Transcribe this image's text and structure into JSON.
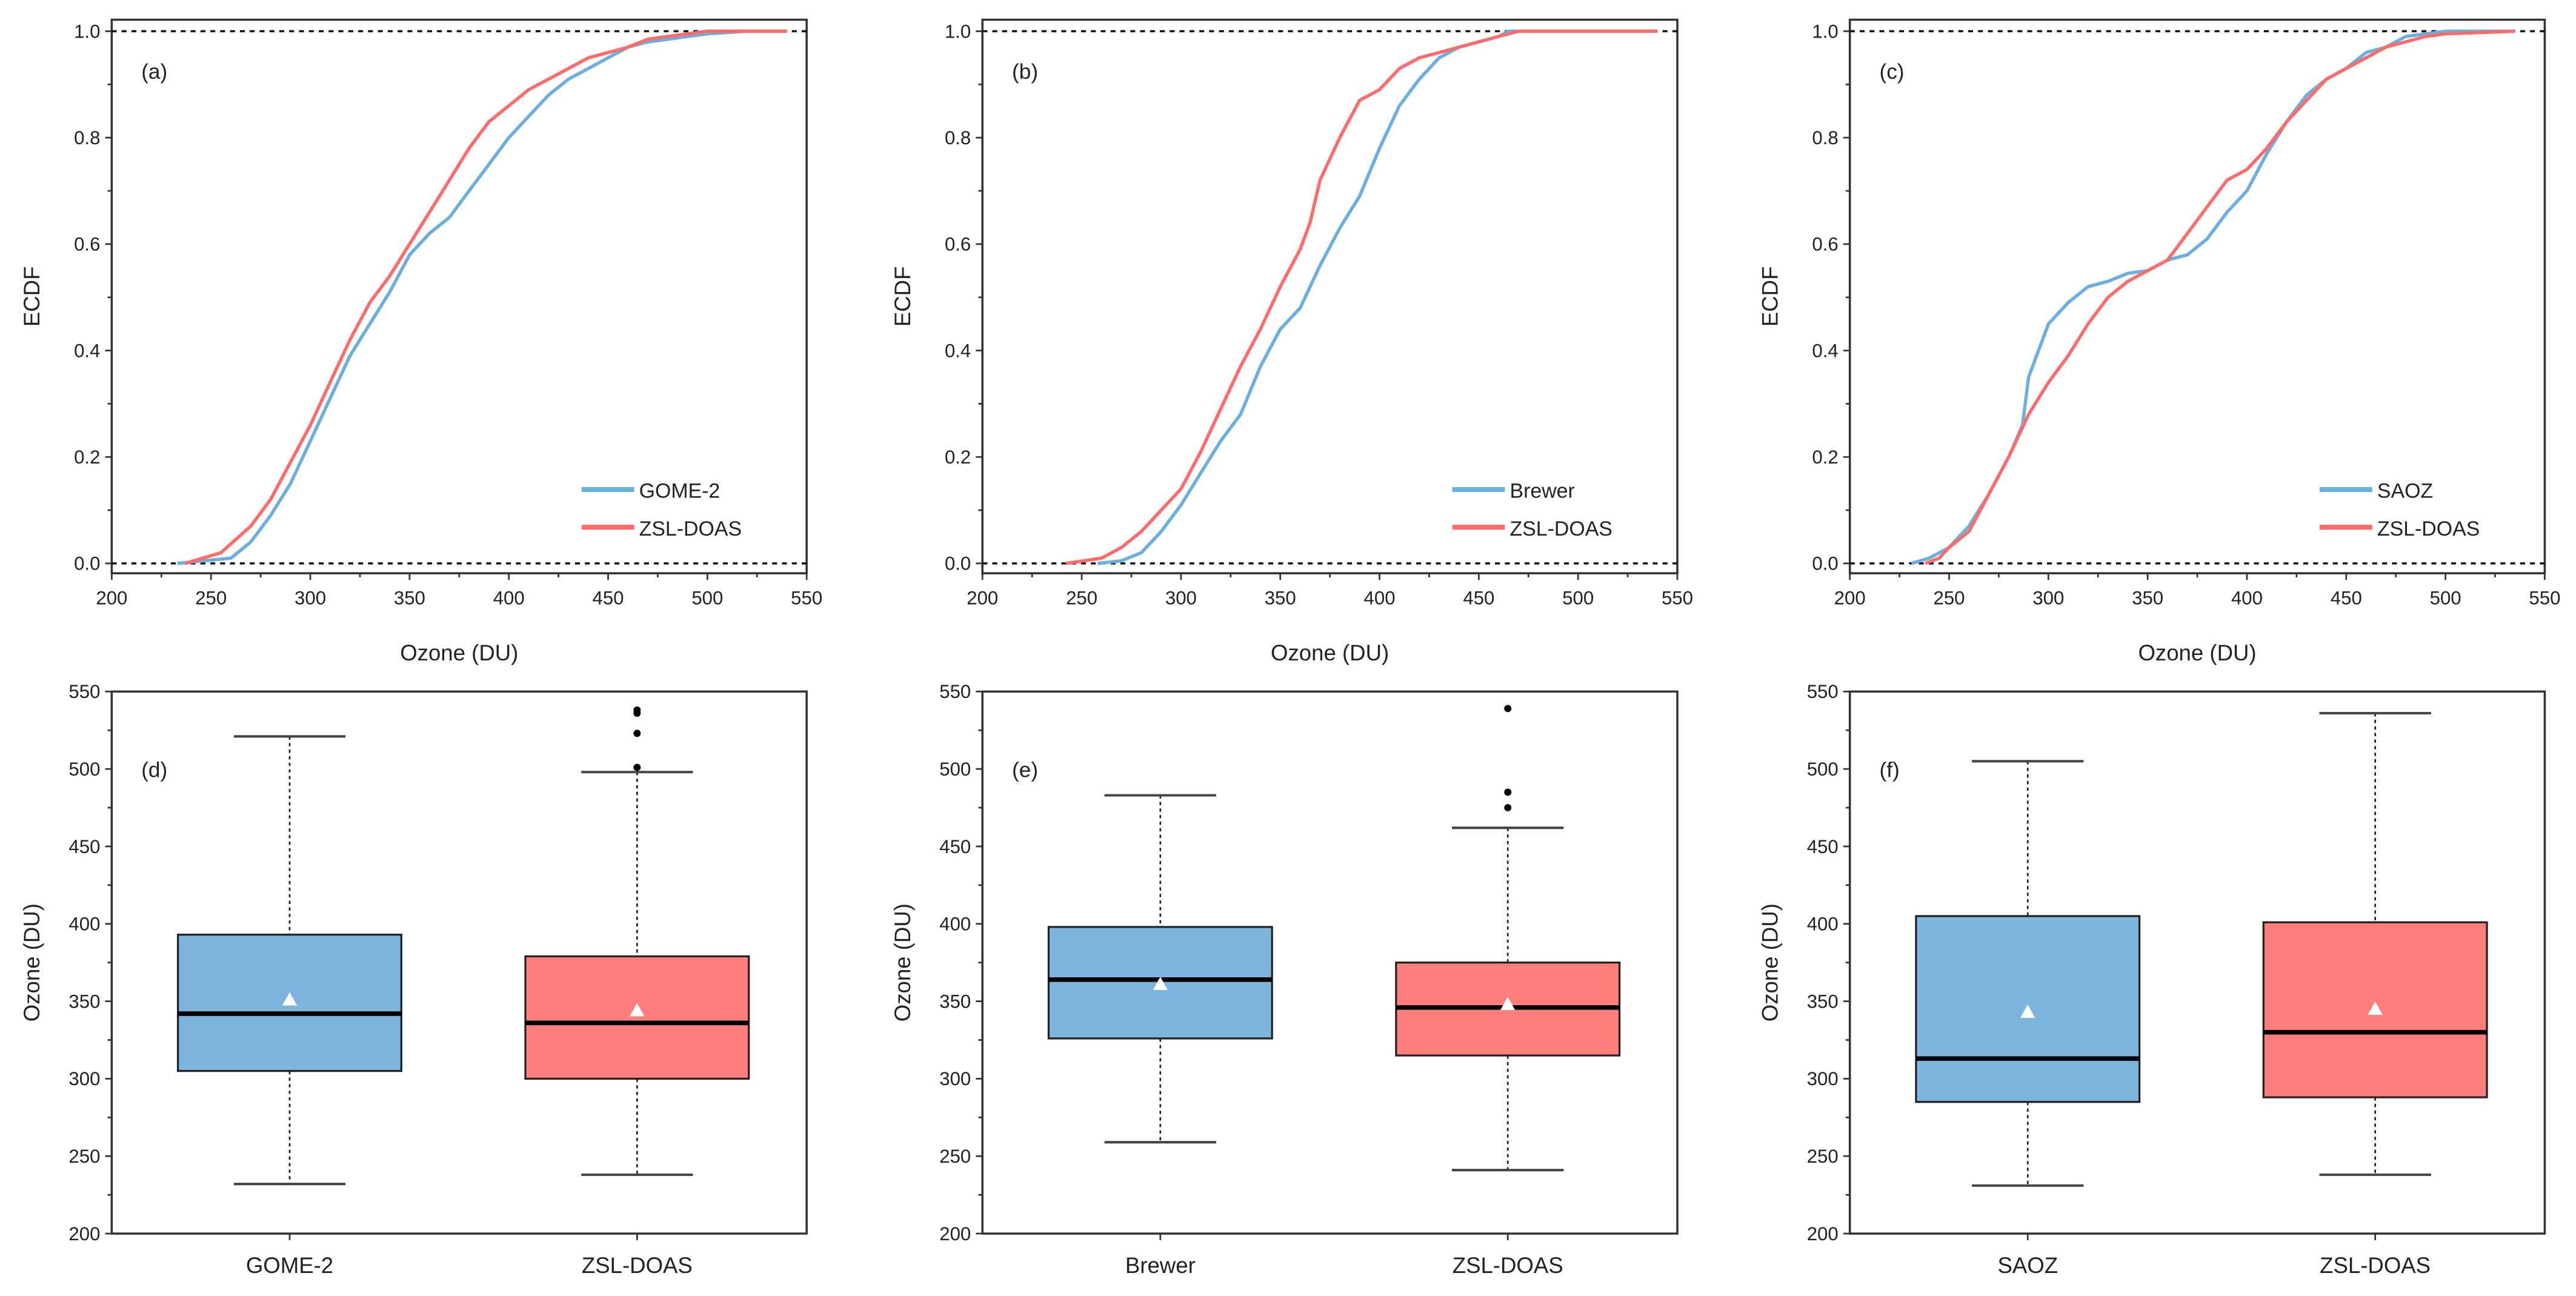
{
  "chart_data": [
    {
      "type": "line",
      "panel_label": "(a)",
      "xlabel": "Ozone (DU)",
      "ylabel": "ECDF",
      "xlim": [
        200,
        550
      ],
      "ylim": [
        0,
        1.0
      ],
      "xticks": [
        "200",
        "250",
        "300",
        "350",
        "400",
        "450",
        "500",
        "550"
      ],
      "yticks": [
        "0.0",
        "0.2",
        "0.4",
        "0.6",
        "0.8",
        "1.0"
      ],
      "reference_lines": [
        0,
        1
      ],
      "legend_position": "bottom-right",
      "series": [
        {
          "name": "GOME-2",
          "color": "#6BAEE0",
          "points": [
            [
              233,
              0
            ],
            [
              260,
              0.01
            ],
            [
              270,
              0.04
            ],
            [
              280,
              0.09
            ],
            [
              290,
              0.15
            ],
            [
              300,
              0.23
            ],
            [
              310,
              0.31
            ],
            [
              320,
              0.39
            ],
            [
              330,
              0.45
            ],
            [
              340,
              0.51
            ],
            [
              350,
              0.58
            ],
            [
              360,
              0.62
            ],
            [
              370,
              0.65
            ],
            [
              380,
              0.7
            ],
            [
              390,
              0.75
            ],
            [
              400,
              0.8
            ],
            [
              410,
              0.84
            ],
            [
              420,
              0.88
            ],
            [
              430,
              0.91
            ],
            [
              440,
              0.93
            ],
            [
              450,
              0.95
            ],
            [
              460,
              0.97
            ],
            [
              470,
              0.98
            ],
            [
              480,
              0.985
            ],
            [
              490,
              0.99
            ],
            [
              500,
              0.995
            ],
            [
              520,
              1
            ],
            [
              540,
              1
            ]
          ]
        },
        {
          "name": "ZSL-DOAS",
          "color": "#FF6B6B",
          "points": [
            [
              237,
              0
            ],
            [
              255,
              0.02
            ],
            [
              270,
              0.07
            ],
            [
              280,
              0.12
            ],
            [
              290,
              0.19
            ],
            [
              300,
              0.26
            ],
            [
              310,
              0.34
            ],
            [
              320,
              0.42
            ],
            [
              330,
              0.49
            ],
            [
              340,
              0.54
            ],
            [
              350,
              0.6
            ],
            [
              360,
              0.66
            ],
            [
              370,
              0.72
            ],
            [
              380,
              0.78
            ],
            [
              390,
              0.83
            ],
            [
              400,
              0.86
            ],
            [
              410,
              0.89
            ],
            [
              420,
              0.91
            ],
            [
              430,
              0.93
            ],
            [
              440,
              0.95
            ],
            [
              450,
              0.96
            ],
            [
              460,
              0.97
            ],
            [
              470,
              0.985
            ],
            [
              480,
              0.99
            ],
            [
              500,
              1
            ],
            [
              540,
              1
            ]
          ]
        }
      ]
    },
    {
      "type": "line",
      "panel_label": "(b)",
      "xlabel": "Ozone (DU)",
      "ylabel": "ECDF",
      "xlim": [
        200,
        550
      ],
      "ylim": [
        0,
        1.0
      ],
      "xticks": [
        "200",
        "250",
        "300",
        "350",
        "400",
        "450",
        "500",
        "550"
      ],
      "yticks": [
        "0.0",
        "0.2",
        "0.4",
        "0.6",
        "0.8",
        "1.0"
      ],
      "reference_lines": [
        0,
        1
      ],
      "legend_position": "bottom-right",
      "series": [
        {
          "name": "Brewer",
          "color": "#6BAEE0",
          "points": [
            [
              258,
              0
            ],
            [
              270,
              0.005
            ],
            [
              280,
              0.02
            ],
            [
              290,
              0.06
            ],
            [
              300,
              0.11
            ],
            [
              310,
              0.17
            ],
            [
              320,
              0.23
            ],
            [
              330,
              0.28
            ],
            [
              340,
              0.37
            ],
            [
              350,
              0.44
            ],
            [
              360,
              0.48
            ],
            [
              370,
              0.56
            ],
            [
              380,
              0.63
            ],
            [
              390,
              0.69
            ],
            [
              400,
              0.78
            ],
            [
              410,
              0.86
            ],
            [
              420,
              0.91
            ],
            [
              430,
              0.95
            ],
            [
              440,
              0.97
            ],
            [
              450,
              0.98
            ],
            [
              460,
              0.99
            ],
            [
              465,
              1
            ],
            [
              540,
              1
            ]
          ]
        },
        {
          "name": "ZSL-DOAS",
          "color": "#FF6B6B",
          "points": [
            [
              242,
              0
            ],
            [
              260,
              0.01
            ],
            [
              270,
              0.03
            ],
            [
              280,
              0.06
            ],
            [
              290,
              0.1
            ],
            [
              300,
              0.14
            ],
            [
              310,
              0.21
            ],
            [
              320,
              0.29
            ],
            [
              330,
              0.37
            ],
            [
              340,
              0.44
            ],
            [
              350,
              0.52
            ],
            [
              360,
              0.59
            ],
            [
              365,
              0.64
            ],
            [
              370,
              0.72
            ],
            [
              380,
              0.8
            ],
            [
              390,
              0.87
            ],
            [
              400,
              0.89
            ],
            [
              410,
              0.93
            ],
            [
              420,
              0.95
            ],
            [
              430,
              0.96
            ],
            [
              440,
              0.97
            ],
            [
              450,
              0.98
            ],
            [
              460,
              0.99
            ],
            [
              470,
              1
            ],
            [
              540,
              1
            ]
          ]
        }
      ]
    },
    {
      "type": "line",
      "panel_label": "(c)",
      "xlabel": "Ozone (DU)",
      "ylabel": "ECDF",
      "xlim": [
        200,
        550
      ],
      "ylim": [
        0,
        1.0
      ],
      "xticks": [
        "200",
        "250",
        "300",
        "350",
        "400",
        "450",
        "500",
        "550"
      ],
      "yticks": [
        "0.0",
        "0.2",
        "0.4",
        "0.6",
        "0.8",
        "1.0"
      ],
      "reference_lines": [
        0,
        1
      ],
      "legend_position": "bottom-right",
      "series": [
        {
          "name": "SAOZ",
          "color": "#6BAEE0",
          "points": [
            [
              231,
              0
            ],
            [
              240,
              0.01
            ],
            [
              250,
              0.03
            ],
            [
              260,
              0.07
            ],
            [
              270,
              0.13
            ],
            [
              280,
              0.2
            ],
            [
              287,
              0.26
            ],
            [
              290,
              0.35
            ],
            [
              300,
              0.45
            ],
            [
              310,
              0.49
            ],
            [
              320,
              0.52
            ],
            [
              330,
              0.53
            ],
            [
              340,
              0.545
            ],
            [
              350,
              0.55
            ],
            [
              360,
              0.57
            ],
            [
              370,
              0.58
            ],
            [
              380,
              0.61
            ],
            [
              390,
              0.66
            ],
            [
              400,
              0.7
            ],
            [
              410,
              0.77
            ],
            [
              420,
              0.83
            ],
            [
              430,
              0.88
            ],
            [
              440,
              0.91
            ],
            [
              450,
              0.93
            ],
            [
              460,
              0.96
            ],
            [
              470,
              0.97
            ],
            [
              480,
              0.99
            ],
            [
              500,
              1
            ],
            [
              535,
              1
            ]
          ]
        },
        {
          "name": "ZSL-DOAS",
          "color": "#FF6B6B",
          "points": [
            [
              238,
              0
            ],
            [
              245,
              0.01
            ],
            [
              250,
              0.03
            ],
            [
              260,
              0.06
            ],
            [
              270,
              0.13
            ],
            [
              280,
              0.2
            ],
            [
              290,
              0.28
            ],
            [
              300,
              0.34
            ],
            [
              310,
              0.39
            ],
            [
              320,
              0.45
            ],
            [
              330,
              0.5
            ],
            [
              340,
              0.53
            ],
            [
              350,
              0.55
            ],
            [
              360,
              0.57
            ],
            [
              370,
              0.62
            ],
            [
              380,
              0.67
            ],
            [
              390,
              0.72
            ],
            [
              400,
              0.74
            ],
            [
              410,
              0.78
            ],
            [
              420,
              0.83
            ],
            [
              430,
              0.87
            ],
            [
              440,
              0.91
            ],
            [
              450,
              0.93
            ],
            [
              460,
              0.95
            ],
            [
              470,
              0.97
            ],
            [
              490,
              0.99
            ],
            [
              500,
              0.995
            ],
            [
              535,
              1
            ]
          ]
        }
      ]
    },
    {
      "type": "box",
      "panel_label": "(d)",
      "ylabel": "Ozone (DU)",
      "ylim": [
        200,
        550
      ],
      "yticks": [
        "200",
        "250",
        "300",
        "350",
        "400",
        "450",
        "500",
        "550"
      ],
      "categories": [
        "GOME-2",
        "ZSL-DOAS"
      ],
      "boxes": [
        {
          "name": "GOME-2",
          "color": "#7EB5DE",
          "whisker_low": 232,
          "q1": 305,
          "median": 342,
          "q3": 393,
          "whisker_high": 521,
          "mean": 351,
          "outliers": []
        },
        {
          "name": "ZSL-DOAS",
          "color": "#FF7F7C",
          "whisker_low": 238,
          "q1": 300,
          "median": 336,
          "q3": 379,
          "whisker_high": 498,
          "mean": 344,
          "outliers": [
            501,
            523,
            536,
            538
          ]
        }
      ]
    },
    {
      "type": "box",
      "panel_label": "(e)",
      "ylabel": "Ozone (DU)",
      "ylim": [
        200,
        550
      ],
      "yticks": [
        "200",
        "250",
        "300",
        "350",
        "400",
        "450",
        "500",
        "550"
      ],
      "categories": [
        "Brewer",
        "ZSL-DOAS"
      ],
      "boxes": [
        {
          "name": "Brewer",
          "color": "#7EB5DE",
          "whisker_low": 259,
          "q1": 326,
          "median": 364,
          "q3": 398,
          "whisker_high": 483,
          "mean": 361,
          "outliers": []
        },
        {
          "name": "ZSL-DOAS",
          "color": "#FF7F7C",
          "whisker_low": 241,
          "q1": 315,
          "median": 346,
          "q3": 375,
          "whisker_high": 462,
          "mean": 348,
          "outliers": [
            475,
            485,
            539
          ]
        }
      ]
    },
    {
      "type": "box",
      "panel_label": "(f)",
      "ylabel": "Ozone (DU)",
      "ylim": [
        200,
        550
      ],
      "yticks": [
        "200",
        "250",
        "300",
        "350",
        "400",
        "450",
        "500",
        "550"
      ],
      "categories": [
        "SAOZ",
        "ZSL-DOAS"
      ],
      "boxes": [
        {
          "name": "SAOZ",
          "color": "#7EB5DE",
          "whisker_low": 231,
          "q1": 285,
          "median": 313,
          "q3": 405,
          "whisker_high": 505,
          "mean": 343,
          "outliers": []
        },
        {
          "name": "ZSL-DOAS",
          "color": "#FF7F7C",
          "whisker_low": 238,
          "q1": 288,
          "median": 330,
          "q3": 401,
          "whisker_high": 536,
          "mean": 345,
          "outliers": []
        }
      ]
    }
  ]
}
